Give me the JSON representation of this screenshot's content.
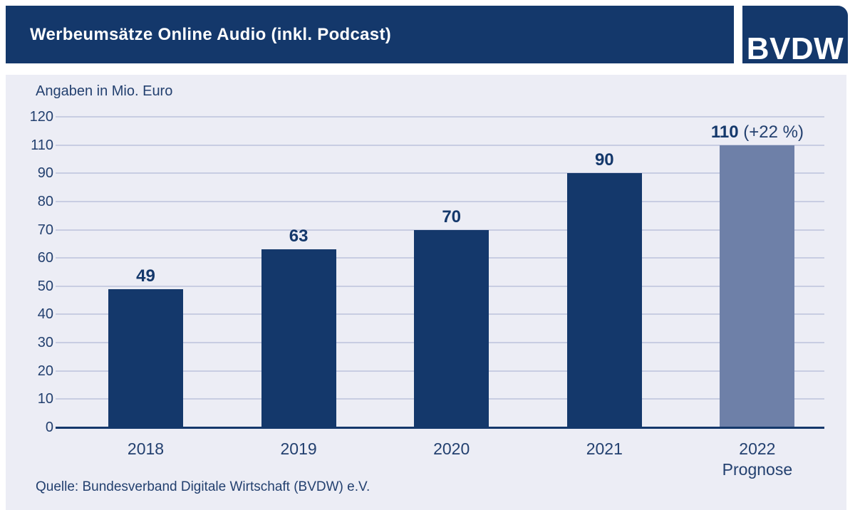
{
  "header": {
    "title": "Werbeumsätze Online Audio (inkl. Podcast)",
    "logo_text": "BVDW"
  },
  "chart_data": {
    "type": "bar",
    "title": "Werbeumsätze Online Audio (inkl. Podcast)",
    "unit_label": "Angaben in Mio. Euro",
    "categories": [
      "2018",
      "2019",
      "2020",
      "2021",
      "2022"
    ],
    "values": [
      49,
      63,
      70,
      90,
      110
    ],
    "bars": [
      {
        "category": "2018",
        "value": 49
      },
      {
        "category": "2019",
        "value": 63
      },
      {
        "category": "2020",
        "value": 70
      },
      {
        "category": "2021",
        "value": 90
      },
      {
        "category": "2022",
        "category_line2": "Prognose",
        "value": 110,
        "suffix": "(+22 %)",
        "forecast": true
      }
    ],
    "y_ticks_displayed": [
      0,
      10,
      20,
      30,
      40,
      50,
      60,
      70,
      80,
      90,
      110,
      120
    ],
    "ylim": [
      0,
      120
    ],
    "grid": true,
    "legend": false,
    "source": "Quelle: Bundesverband Digitale Wirtschaft (BVDW) e.V."
  },
  "colors": {
    "navy": "#14386B",
    "forecast_blue": "#6E80A8",
    "panel_background": "#ECEDF5",
    "gridline": "#C8CDE2",
    "text_navy": "#23406F",
    "title_text": "#FFFFFF"
  }
}
